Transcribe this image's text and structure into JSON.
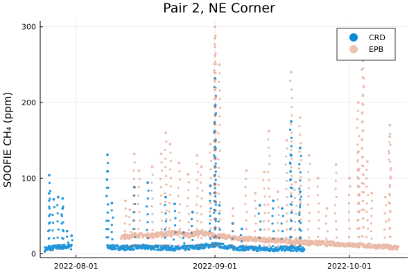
{
  "chart_data": {
    "type": "scatter",
    "title": "Pair 2, NE Corner",
    "xlabel": "",
    "ylabel": "SOOFIE CH₄ (ppm)",
    "x_ticks": [
      {
        "date": "2022-08-01",
        "label": "2022-08-01"
      },
      {
        "date": "2022-09-01",
        "label": "2022-09-01"
      },
      {
        "date": "2022-10-01",
        "label": "2022-10-01"
      }
    ],
    "xlim": [
      "2022-07-24",
      "2022-10-14"
    ],
    "y_ticks": [
      0,
      100,
      200,
      300
    ],
    "ylim": [
      -5,
      308
    ],
    "grid": true,
    "legend_position": "top-right",
    "series": [
      {
        "name": "CRD",
        "color": "#0a8ad6",
        "alpha": 0.9,
        "baseline": [
          [
            "2022-07-25",
            6
          ],
          [
            "2022-07-28",
            9
          ],
          [
            "2022-07-31",
            10
          ],
          [
            "2022-08-08",
            9
          ],
          [
            "2022-08-12",
            8
          ],
          [
            "2022-08-16",
            9
          ],
          [
            "2022-08-20",
            8
          ],
          [
            "2022-08-24",
            7
          ],
          [
            "2022-08-28",
            9
          ],
          [
            "2022-09-01",
            12
          ],
          [
            "2022-09-05",
            8
          ],
          [
            "2022-09-09",
            7
          ],
          [
            "2022-09-13",
            6
          ],
          [
            "2022-09-17",
            7
          ],
          [
            "2022-09-21",
            6
          ]
        ],
        "peaks": [
          [
            "2022-07-26",
            80
          ],
          [
            "2022-07-26",
            104
          ],
          [
            "2022-07-27",
            72
          ],
          [
            "2022-07-28",
            75
          ],
          [
            "2022-07-29",
            73
          ],
          [
            "2022-07-29",
            60
          ],
          [
            "2022-07-30",
            30
          ],
          [
            "2022-07-31",
            24
          ],
          [
            "2022-08-08",
            131
          ],
          [
            "2022-08-08",
            109
          ],
          [
            "2022-08-09",
            67
          ],
          [
            "2022-08-14",
            88
          ],
          [
            "2022-08-17",
            94
          ],
          [
            "2022-08-21",
            75
          ],
          [
            "2022-08-23",
            66
          ],
          [
            "2022-08-25",
            28
          ],
          [
            "2022-08-27",
            55
          ],
          [
            "2022-08-31",
            90
          ],
          [
            "2022-09-01",
            232
          ],
          [
            "2022-09-01",
            195
          ],
          [
            "2022-09-01",
            141
          ],
          [
            "2022-09-02",
            64
          ],
          [
            "2022-09-05",
            40
          ],
          [
            "2022-09-07",
            33
          ],
          [
            "2022-09-11",
            64
          ],
          [
            "2022-09-14",
            70
          ],
          [
            "2022-09-16",
            60
          ],
          [
            "2022-09-18",
            175
          ],
          [
            "2022-09-18",
            130
          ],
          [
            "2022-09-20",
            140
          ],
          [
            "2022-09-20",
            82
          ]
        ]
      },
      {
        "name": "EPB",
        "color": "#d56a42",
        "alpha": 0.45,
        "baseline": [
          [
            "2022-08-11",
            22
          ],
          [
            "2022-08-14",
            25
          ],
          [
            "2022-08-17",
            24
          ],
          [
            "2022-08-20",
            26
          ],
          [
            "2022-08-23",
            28
          ],
          [
            "2022-08-26",
            25
          ],
          [
            "2022-08-29",
            28
          ],
          [
            "2022-09-01",
            24
          ],
          [
            "2022-09-04",
            22
          ],
          [
            "2022-09-07",
            20
          ],
          [
            "2022-09-10",
            19
          ],
          [
            "2022-09-13",
            18
          ],
          [
            "2022-09-16",
            17
          ],
          [
            "2022-09-19",
            16
          ],
          [
            "2022-09-22",
            15
          ],
          [
            "2022-09-25",
            14
          ],
          [
            "2022-09-28",
            13
          ],
          [
            "2022-10-01",
            12
          ],
          [
            "2022-10-04",
            11
          ],
          [
            "2022-10-07",
            10
          ],
          [
            "2022-10-10",
            9
          ],
          [
            "2022-10-12",
            8
          ]
        ],
        "peaks": [
          [
            "2022-08-12",
            70
          ],
          [
            "2022-08-13",
            58
          ],
          [
            "2022-08-14",
            132
          ],
          [
            "2022-08-15",
            110
          ],
          [
            "2022-08-18",
            115
          ],
          [
            "2022-08-20",
            132
          ],
          [
            "2022-08-21",
            160
          ],
          [
            "2022-08-22",
            145
          ],
          [
            "2022-08-24",
            120
          ],
          [
            "2022-08-26",
            105
          ],
          [
            "2022-08-28",
            130
          ],
          [
            "2022-08-29",
            115
          ],
          [
            "2022-08-31",
            145
          ],
          [
            "2022-09-01",
            300
          ],
          [
            "2022-09-01",
            285
          ],
          [
            "2022-09-01",
            262
          ],
          [
            "2022-09-02",
            250
          ],
          [
            "2022-09-05",
            60
          ],
          [
            "2022-09-08",
            110
          ],
          [
            "2022-09-10",
            80
          ],
          [
            "2022-09-12",
            108
          ],
          [
            "2022-09-13",
            162
          ],
          [
            "2022-09-15",
            82
          ],
          [
            "2022-09-17",
            150
          ],
          [
            "2022-09-18",
            240
          ],
          [
            "2022-09-19",
            95
          ],
          [
            "2022-09-20",
            180
          ],
          [
            "2022-09-22",
            130
          ],
          [
            "2022-09-24",
            100
          ],
          [
            "2022-09-26",
            60
          ],
          [
            "2022-09-28",
            118
          ],
          [
            "2022-10-01",
            100
          ],
          [
            "2022-10-03",
            135
          ],
          [
            "2022-10-03",
            110
          ],
          [
            "2022-10-03",
            200
          ],
          [
            "2022-10-04",
            280
          ],
          [
            "2022-10-04",
            255
          ],
          [
            "2022-10-05",
            122
          ],
          [
            "2022-10-06",
            80
          ],
          [
            "2022-10-09",
            75
          ],
          [
            "2022-10-10",
            170
          ],
          [
            "2022-10-10",
            155
          ]
        ]
      }
    ]
  }
}
